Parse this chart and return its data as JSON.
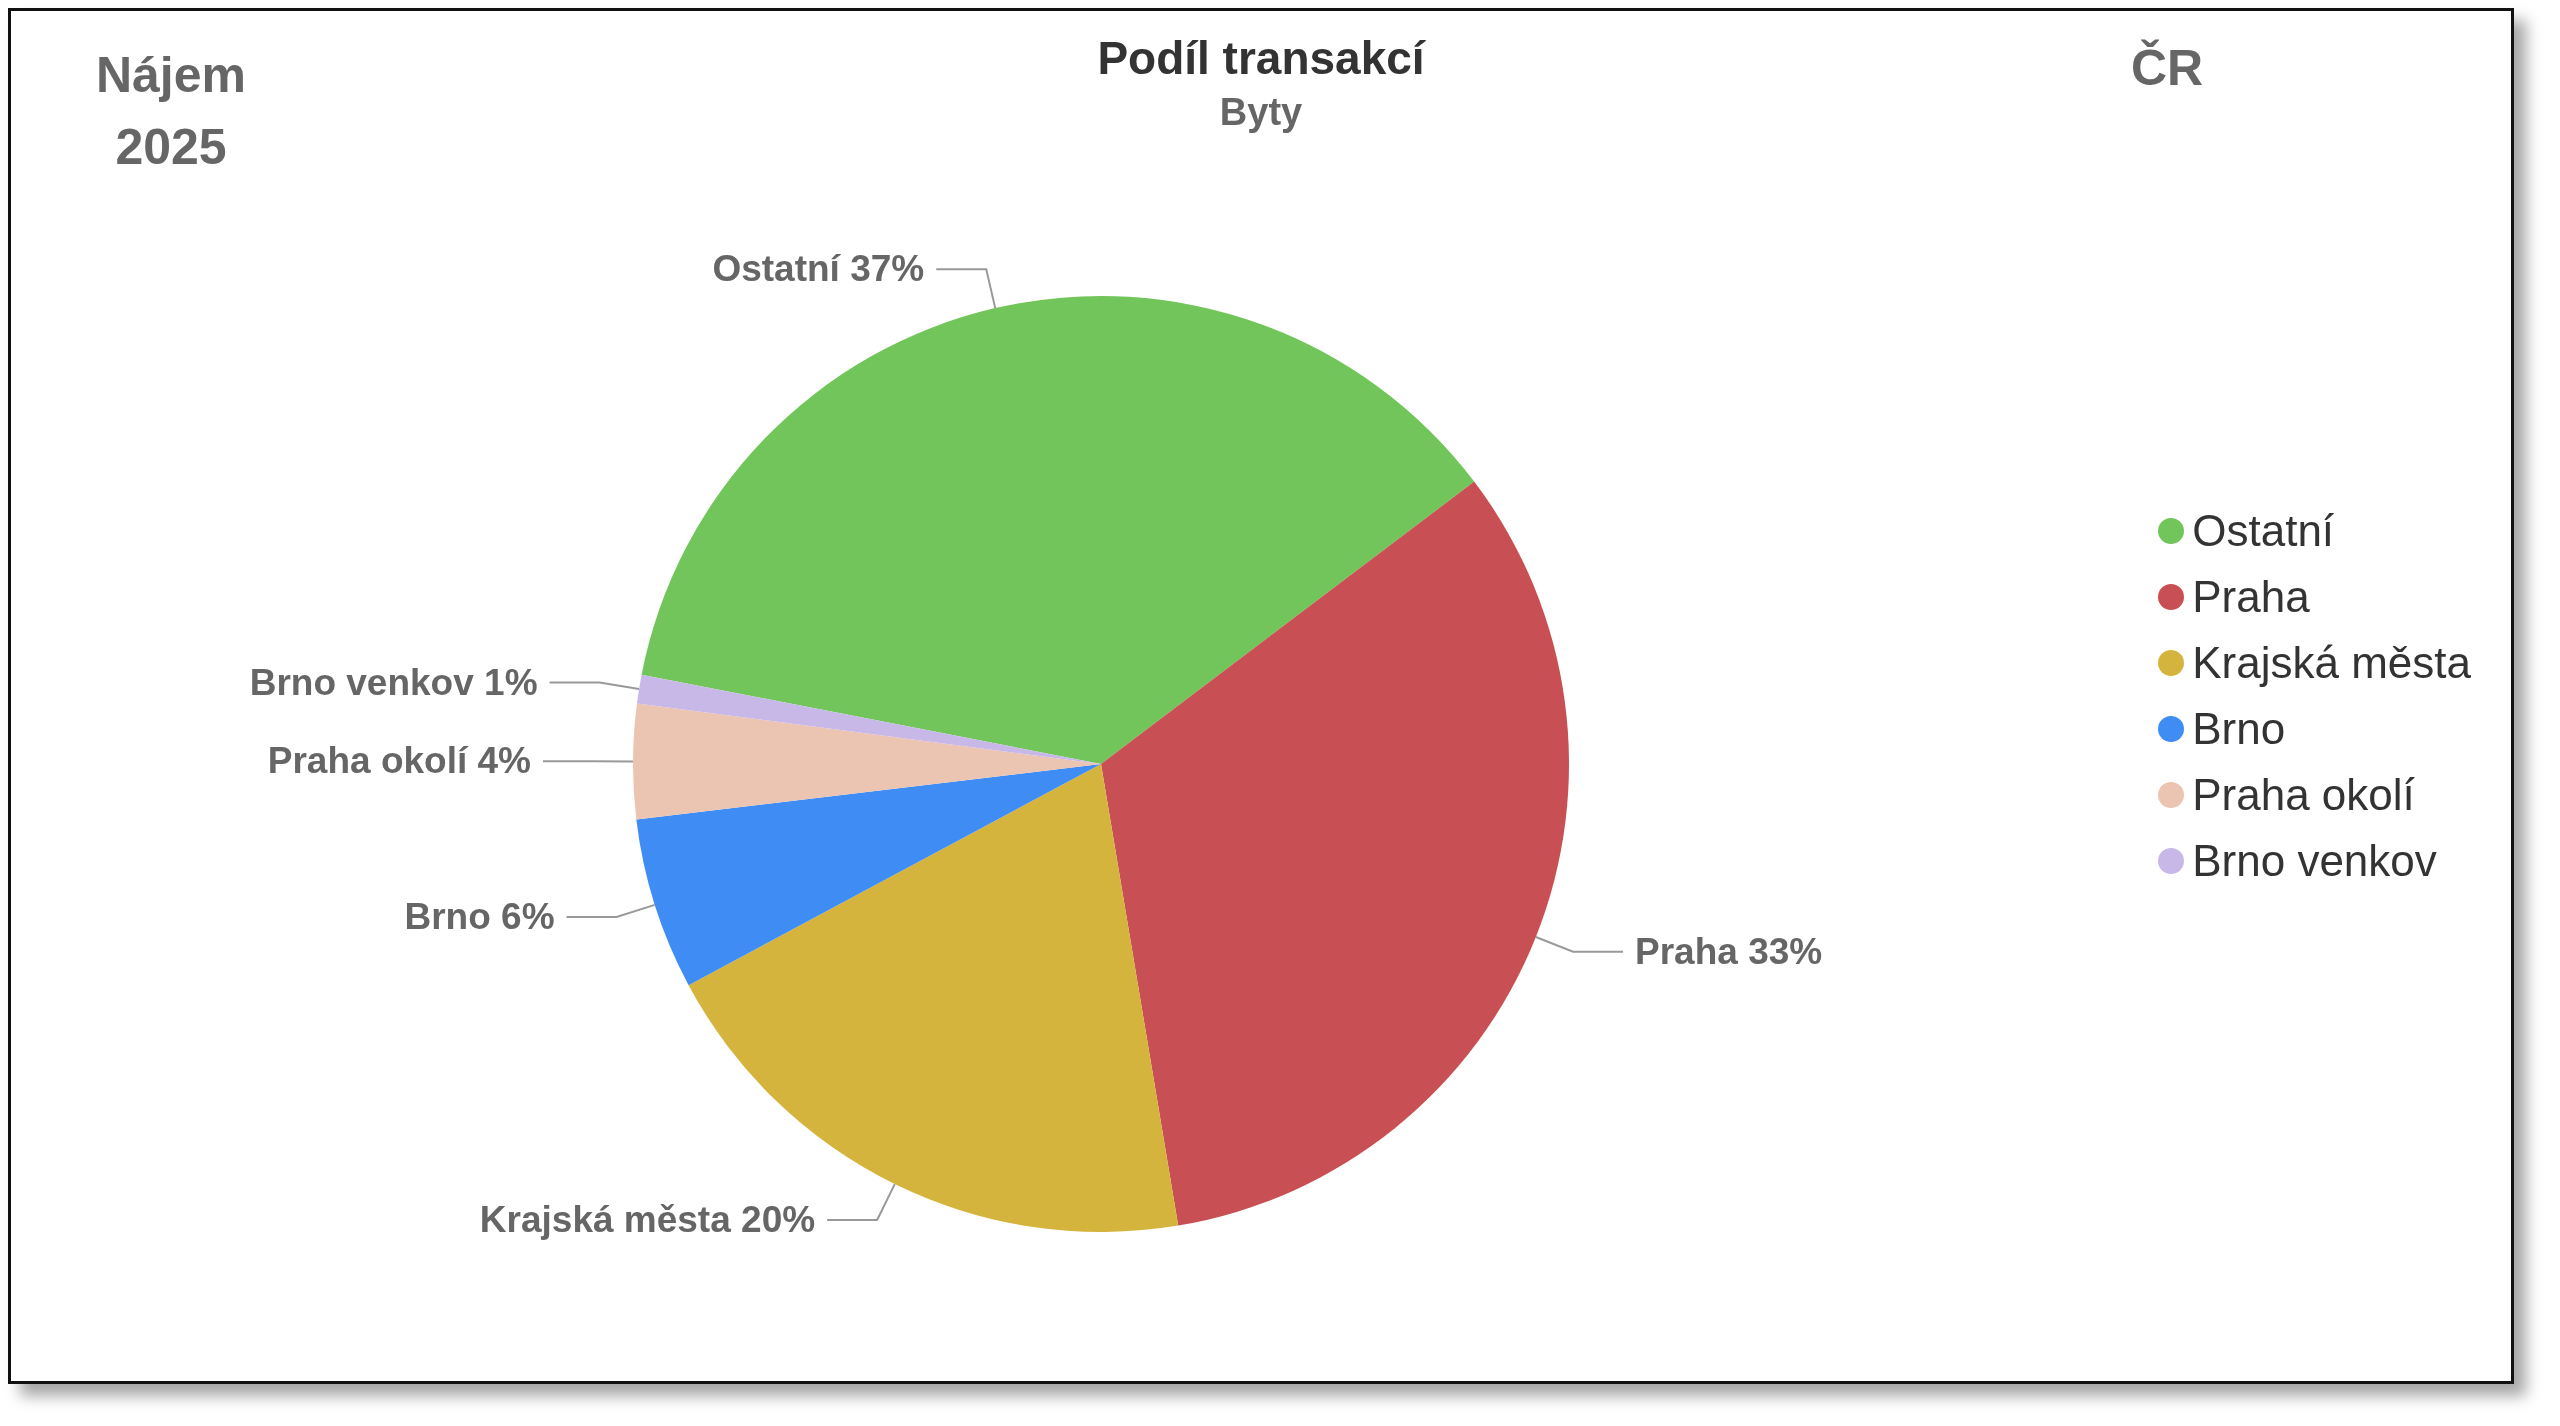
{
  "chart_data": {
    "type": "pie",
    "title": "Podíl transakcí",
    "subtitle": "Byty",
    "annotations": [
      "Nájem 2025",
      "ČR"
    ],
    "categories": [
      "Ostatní",
      "Praha",
      "Krajská města",
      "Brno",
      "Praha okolí",
      "Brno venkov"
    ],
    "values": [
      37,
      33,
      20,
      6,
      4,
      1
    ],
    "value_labels": [
      "37%",
      "33%",
      "20%",
      "6%",
      "4%",
      "1%"
    ],
    "colors": [
      "#72c55a",
      "#c84f53",
      "#d4b43c",
      "#3f8cf5",
      "#ecc4b2",
      "#c8b8e8"
    ],
    "legend": "right"
  }
}
